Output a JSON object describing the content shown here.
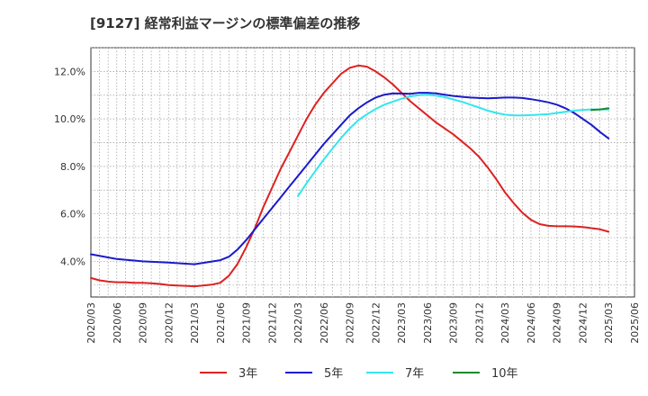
{
  "chart_data": {
    "type": "line",
    "title": "[9127]  経常利益マージンの標準偏差の推移",
    "xlabel": "",
    "ylabel": "",
    "ylim": [
      2.5,
      13.0
    ],
    "y_ticks": [
      4.0,
      6.0,
      8.0,
      10.0,
      12.0
    ],
    "y_tick_labels": [
      "4.0%",
      "6.0%",
      "8.0%",
      "10.0%",
      "12.0%"
    ],
    "x_ticks": [
      "2020/03",
      "2020/06",
      "2020/09",
      "2020/12",
      "2021/03",
      "2021/06",
      "2021/09",
      "2021/12",
      "2022/03",
      "2022/06",
      "2022/09",
      "2022/12",
      "2023/03",
      "2023/06",
      "2023/09",
      "2023/12",
      "2024/03",
      "2024/06",
      "2024/09",
      "2024/12",
      "2025/03",
      "2025/06"
    ],
    "grid": true,
    "legend_position": "bottom",
    "series": [
      {
        "name": "3年",
        "color": "#dd2222",
        "x": [
          "2020/03",
          "2020/04",
          "2020/05",
          "2020/06",
          "2020/07",
          "2020/08",
          "2020/09",
          "2020/10",
          "2020/11",
          "2020/12",
          "2021/01",
          "2021/02",
          "2021/03",
          "2021/04",
          "2021/05",
          "2021/06",
          "2021/07",
          "2021/08",
          "2021/09",
          "2021/10",
          "2021/11",
          "2021/12",
          "2022/01",
          "2022/02",
          "2022/03",
          "2022/04",
          "2022/05",
          "2022/06",
          "2022/07",
          "2022/08",
          "2022/09",
          "2022/10",
          "2022/11",
          "2022/12",
          "2023/01",
          "2023/02",
          "2023/03",
          "2023/04",
          "2023/05",
          "2023/06",
          "2023/07",
          "2023/08",
          "2023/09",
          "2023/10",
          "2023/11",
          "2023/12",
          "2024/01",
          "2024/02",
          "2024/03",
          "2024/04",
          "2024/05",
          "2024/06",
          "2024/07",
          "2024/08",
          "2024/09",
          "2024/10",
          "2024/11",
          "2024/12",
          "2025/01",
          "2025/02",
          "2025/03"
        ],
        "values": [
          3.3,
          3.2,
          3.15,
          3.12,
          3.12,
          3.1,
          3.1,
          3.08,
          3.05,
          3.0,
          2.98,
          2.97,
          2.95,
          2.98,
          3.02,
          3.1,
          3.4,
          3.9,
          4.6,
          5.4,
          6.3,
          7.1,
          7.9,
          8.6,
          9.3,
          10.0,
          10.6,
          11.1,
          11.5,
          11.9,
          12.15,
          12.25,
          12.2,
          12.0,
          11.75,
          11.45,
          11.1,
          10.75,
          10.45,
          10.15,
          9.85,
          9.6,
          9.35,
          9.05,
          8.75,
          8.4,
          7.95,
          7.45,
          6.9,
          6.45,
          6.05,
          5.75,
          5.57,
          5.5,
          5.48,
          5.48,
          5.47,
          5.45,
          5.4,
          5.35,
          5.25
        ]
      },
      {
        "name": "5年",
        "color": "#1a1acc",
        "x": [
          "2020/03",
          "2020/06",
          "2020/09",
          "2020/12",
          "2021/03",
          "2021/06",
          "2021/07",
          "2021/08",
          "2021/09",
          "2021/10",
          "2021/11",
          "2021/12",
          "2022/01",
          "2022/02",
          "2022/03",
          "2022/04",
          "2022/05",
          "2022/06",
          "2022/07",
          "2022/08",
          "2022/09",
          "2022/10",
          "2022/11",
          "2022/12",
          "2023/01",
          "2023/02",
          "2023/03",
          "2023/04",
          "2023/05",
          "2023/06",
          "2023/07",
          "2023/08",
          "2023/09",
          "2023/10",
          "2023/11",
          "2023/12",
          "2024/01",
          "2024/02",
          "2024/03",
          "2024/04",
          "2024/05",
          "2024/06",
          "2024/07",
          "2024/08",
          "2024/09",
          "2024/10",
          "2024/11",
          "2024/12",
          "2025/01",
          "2025/02",
          "2025/03"
        ],
        "values": [
          4.3,
          4.1,
          4.0,
          3.95,
          3.88,
          4.05,
          4.2,
          4.5,
          4.9,
          5.35,
          5.8,
          6.25,
          6.7,
          7.15,
          7.6,
          8.05,
          8.5,
          8.95,
          9.35,
          9.75,
          10.15,
          10.45,
          10.7,
          10.9,
          11.02,
          11.08,
          11.07,
          11.06,
          11.1,
          11.1,
          11.08,
          11.02,
          10.97,
          10.93,
          10.9,
          10.88,
          10.87,
          10.88,
          10.9,
          10.9,
          10.88,
          10.83,
          10.77,
          10.7,
          10.6,
          10.45,
          10.25,
          10.0,
          9.75,
          9.45,
          9.18
        ]
      },
      {
        "name": "7年",
        "color": "#33e6ee",
        "x": [
          "2022/03",
          "2022/04",
          "2022/05",
          "2022/06",
          "2022/07",
          "2022/08",
          "2022/09",
          "2022/10",
          "2022/11",
          "2022/12",
          "2023/01",
          "2023/02",
          "2023/03",
          "2023/04",
          "2023/05",
          "2023/06",
          "2023/07",
          "2023/08",
          "2023/09",
          "2023/10",
          "2023/11",
          "2023/12",
          "2024/01",
          "2024/02",
          "2024/03",
          "2024/04",
          "2024/05",
          "2024/06",
          "2024/07",
          "2024/08",
          "2024/09",
          "2024/10",
          "2024/11",
          "2024/12",
          "2025/01",
          "2025/02",
          "2025/03"
        ],
        "values": [
          6.75,
          7.3,
          7.8,
          8.3,
          8.75,
          9.2,
          9.6,
          9.95,
          10.2,
          10.42,
          10.6,
          10.73,
          10.85,
          10.95,
          11.0,
          11.02,
          10.98,
          10.92,
          10.82,
          10.72,
          10.6,
          10.48,
          10.35,
          10.25,
          10.18,
          10.15,
          10.15,
          10.16,
          10.18,
          10.2,
          10.25,
          10.3,
          10.35,
          10.38,
          10.4,
          10.4,
          10.4
        ]
      },
      {
        "name": "10年",
        "color": "#1a8a2a",
        "x": [
          "2025/01",
          "2025/02",
          "2025/03"
        ],
        "values": [
          10.38,
          10.4,
          10.45
        ]
      }
    ]
  }
}
